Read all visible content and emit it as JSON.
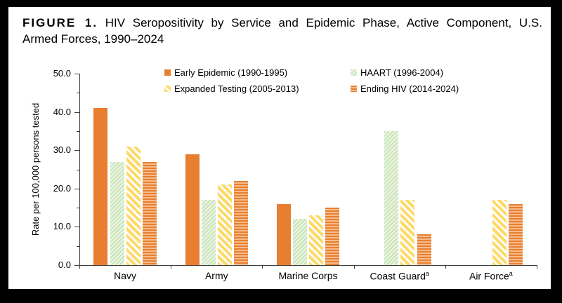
{
  "figure": {
    "label": "FIGURE 1.",
    "title_line1": "HIV Seropositivity by Service and Epidemic Phase, Active Component, U.S.",
    "title_line2": "Armed Forces, 1990–2024"
  },
  "chart_data": {
    "type": "bar",
    "title": "FIGURE 1. HIV Seropositivity by Service and Epidemic Phase, Active Component, U.S. Armed Forces, 1990–2024",
    "xlabel": "",
    "ylabel": "Rate per 100,000 persons tested",
    "ylim": [
      0,
      50
    ],
    "ytick_major_step": 10,
    "ytick_minor_step": 5,
    "ytick_label_format": "one-decimal",
    "grid": false,
    "legend_position": "top",
    "categories": [
      {
        "label": "Navy",
        "sup": ""
      },
      {
        "label": "Army",
        "sup": ""
      },
      {
        "label": "Marine Corps",
        "sup": ""
      },
      {
        "label": "Coast Guard",
        "sup": "a"
      },
      {
        "label": "Air Force",
        "sup": "a"
      }
    ],
    "series": [
      {
        "name": "Early Epidemic (1990-1995)",
        "pattern": "solid-orange",
        "color": "#E87E2F",
        "values": [
          41,
          29,
          16,
          null,
          null
        ]
      },
      {
        "name": "HAART (1996-2004)",
        "pattern": "green-hatch",
        "color": "#C9E3B9",
        "values": [
          27,
          17,
          12,
          35,
          null
        ]
      },
      {
        "name": "Expanded Testing (2005-2013)",
        "pattern": "yellow-hatch",
        "color": "#FFD966",
        "values": [
          31,
          21,
          13,
          17,
          17
        ]
      },
      {
        "name": "Ending HIV (2014-2024)",
        "pattern": "orange-lines",
        "color": "#E8802F",
        "values": [
          27,
          22,
          15,
          8,
          16
        ]
      }
    ],
    "colors": {
      "frame": "#000000",
      "background": "#FFFFFF",
      "axis": "#3F3F3F",
      "text": "#000000"
    }
  }
}
